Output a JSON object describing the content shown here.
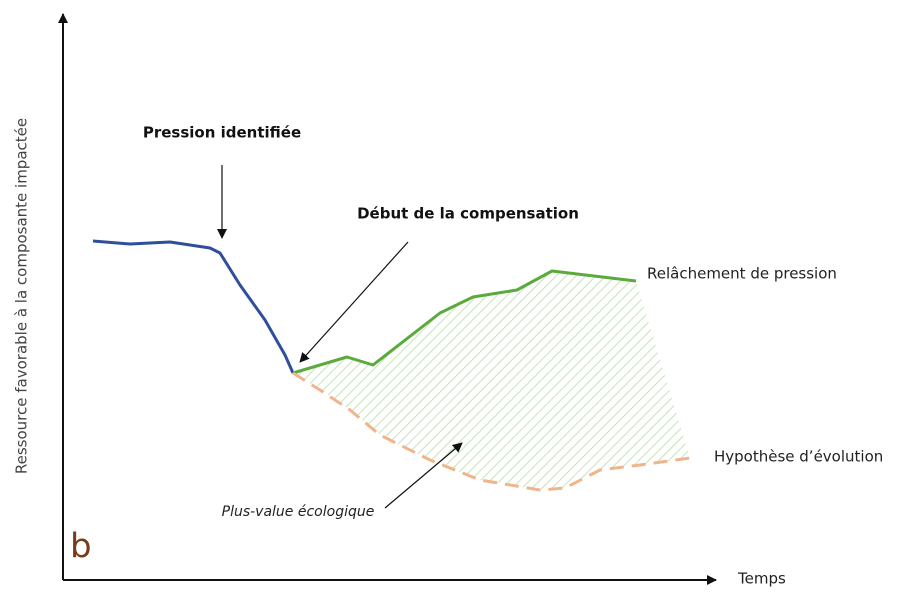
{
  "panel_letter": "b",
  "y_axis_label": "Ressource favorable  à la composante impactée",
  "x_axis_label": "Temps",
  "annotations": {
    "pressure": "Pression identifiée",
    "compensation_start": "Début de la compensation",
    "pressure_release": "Relâchement de pression",
    "evolution_hypothesis": "Hypothèse d’évolution",
    "ecological_gain": "Plus-value écologique"
  }
}
